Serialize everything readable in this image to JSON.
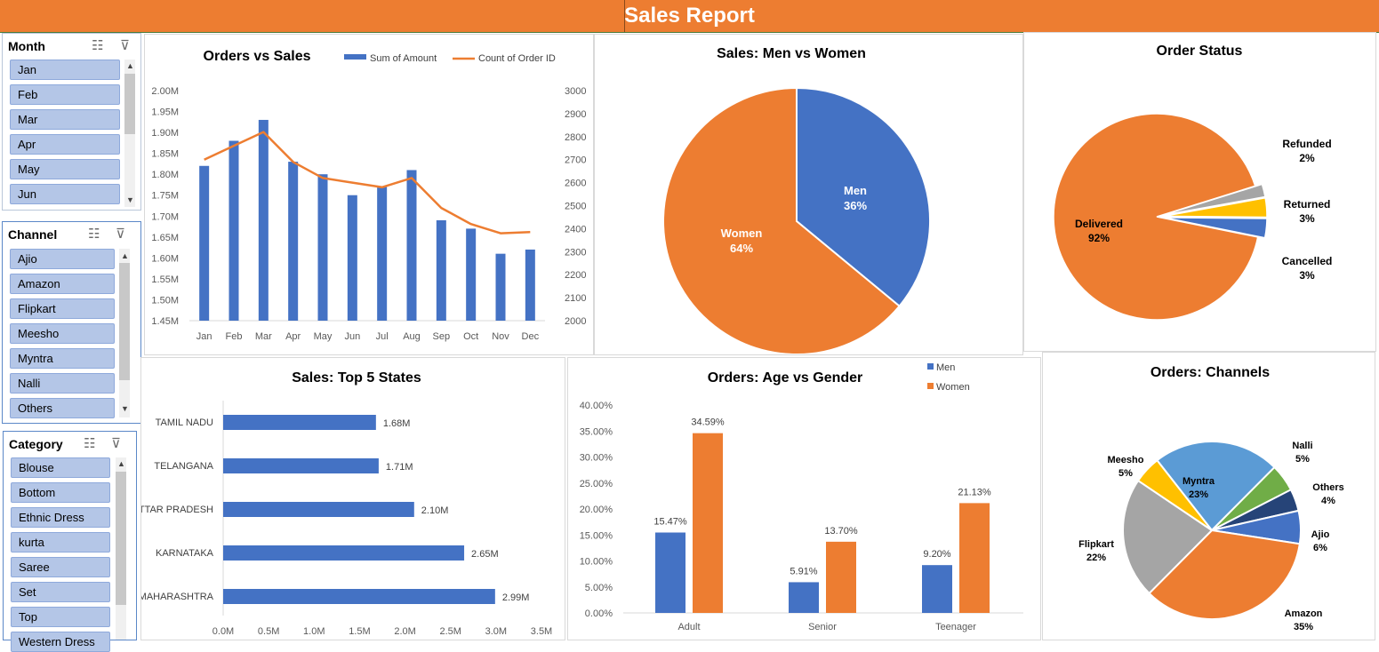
{
  "header": {
    "title": "Sales Report"
  },
  "colors": {
    "banner": "#ED7D31",
    "blue": "#4472C4",
    "orange": "#ED7D31",
    "gray": "#A5A5A5",
    "yellow": "#FFC000",
    "lightblue": "#5B9BD5",
    "green": "#70AD47",
    "navy": "#264478",
    "slicer_item": "#B4C6E7"
  },
  "slicers": {
    "month": {
      "title": "Month",
      "items": [
        "Jan",
        "Feb",
        "Mar",
        "Apr",
        "May",
        "Jun"
      ]
    },
    "channel": {
      "title": "Channel",
      "items": [
        "Ajio",
        "Amazon",
        "Flipkart",
        "Meesho",
        "Myntra",
        "Nalli",
        "Others"
      ]
    },
    "category": {
      "title": "Category",
      "items": [
        "Blouse",
        "Bottom",
        "Ethnic Dress",
        "kurta",
        "Saree",
        "Set",
        "Top",
        "Western Dress"
      ]
    }
  },
  "chart_data": [
    {
      "id": "orders-vs-sales",
      "type": "bar+line",
      "title": "Orders vs Sales",
      "categories": [
        "Jan",
        "Feb",
        "Mar",
        "Apr",
        "May",
        "Jun",
        "Jul",
        "Aug",
        "Sep",
        "Oct",
        "Nov",
        "Dec"
      ],
      "series": [
        {
          "name": "Sum of Amount",
          "type": "bar",
          "axis": "left",
          "values": [
            1.82,
            1.88,
            1.93,
            1.83,
            1.8,
            1.75,
            1.77,
            1.81,
            1.69,
            1.67,
            1.61,
            1.62
          ]
        },
        {
          "name": "Count of Order ID",
          "type": "line",
          "axis": "right",
          "values": [
            2700,
            2760,
            2820,
            2690,
            2620,
            2600,
            2580,
            2620,
            2490,
            2420,
            2380,
            2385
          ]
        }
      ],
      "ylim_left": [
        1.45,
        2.0
      ],
      "yticks_left": [
        "1.45M",
        "1.50M",
        "1.55M",
        "1.60M",
        "1.65M",
        "1.70M",
        "1.75M",
        "1.80M",
        "1.85M",
        "1.90M",
        "1.95M",
        "2.00M"
      ],
      "ylim_right": [
        2000,
        3000
      ],
      "yticks_right": [
        "2000",
        "2100",
        "2200",
        "2300",
        "2400",
        "2500",
        "2600",
        "2700",
        "2800",
        "2900",
        "3000"
      ],
      "legend": "top"
    },
    {
      "id": "sales-men-women",
      "type": "pie",
      "title": "Sales: Men vs Women",
      "slices": [
        {
          "name": "Men",
          "value": 36,
          "label": "36%"
        },
        {
          "name": "Women",
          "value": 64,
          "label": "64%"
        }
      ]
    },
    {
      "id": "order-status",
      "type": "pie",
      "title": "Order Status",
      "slices": [
        {
          "name": "Refunded",
          "value": 2,
          "label": "2%"
        },
        {
          "name": "Returned",
          "value": 3,
          "label": "3%"
        },
        {
          "name": "Cancelled",
          "value": 3,
          "label": "3%"
        },
        {
          "name": "Delivered",
          "value": 92,
          "label": "92%"
        }
      ]
    },
    {
      "id": "top-5-states",
      "type": "bar",
      "orientation": "horizontal",
      "title": "Sales: Top 5 States",
      "categories": [
        "TAMIL NADU",
        "TELANGANA",
        "UTTAR PRADESH",
        "KARNATAKA",
        "MAHARASHTRA"
      ],
      "values": [
        1.68,
        1.71,
        2.1,
        2.65,
        2.99
      ],
      "labels": [
        "1.68M",
        "1.71M",
        "2.10M",
        "2.65M",
        "2.99M"
      ],
      "xlim": [
        0,
        3.5
      ],
      "xticks": [
        "0.0M",
        "0.5M",
        "1.0M",
        "1.5M",
        "2.0M",
        "2.5M",
        "3.0M",
        "3.5M"
      ]
    },
    {
      "id": "age-vs-gender",
      "type": "bar",
      "title": "Orders: Age vs Gender",
      "categories": [
        "Adult",
        "Senior",
        "Teenager"
      ],
      "series": [
        {
          "name": "Men",
          "values": [
            15.47,
            5.91,
            9.2
          ],
          "labels": [
            "15.47%",
            "5.91%",
            "9.20%"
          ]
        },
        {
          "name": "Women",
          "values": [
            34.59,
            13.7,
            21.13
          ],
          "labels": [
            "34.59%",
            "13.70%",
            "21.13%"
          ]
        }
      ],
      "ylim": [
        0,
        40
      ],
      "yticks": [
        "0.00%",
        "5.00%",
        "10.00%",
        "15.00%",
        "20.00%",
        "25.00%",
        "30.00%",
        "35.00%",
        "40.00%"
      ],
      "legend": "top-right"
    },
    {
      "id": "orders-channels",
      "type": "pie",
      "title": "Orders: Channels",
      "slices": [
        {
          "name": "Myntra",
          "value": 23,
          "label": "23%"
        },
        {
          "name": "Nalli",
          "value": 5,
          "label": "5%"
        },
        {
          "name": "Others",
          "value": 4,
          "label": "4%"
        },
        {
          "name": "Ajio",
          "value": 6,
          "label": "6%"
        },
        {
          "name": "Amazon",
          "value": 35,
          "label": "35%"
        },
        {
          "name": "Flipkart",
          "value": 22,
          "label": "22%"
        },
        {
          "name": "Meesho",
          "value": 5,
          "label": "5%"
        }
      ]
    }
  ]
}
